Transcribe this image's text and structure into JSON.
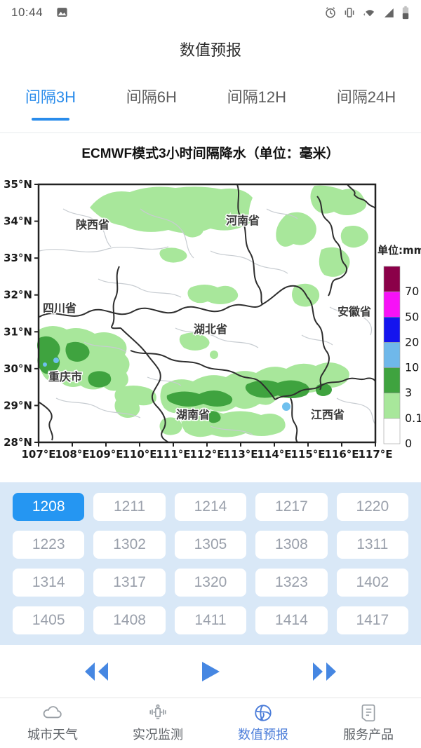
{
  "status_bar": {
    "time": "10:44"
  },
  "header": {
    "title": "数值预报"
  },
  "tabs": [
    {
      "label": "间隔3H",
      "active": true
    },
    {
      "label": "间隔6H",
      "active": false
    },
    {
      "label": "间隔12H",
      "active": false
    },
    {
      "label": "间隔24H",
      "active": false
    }
  ],
  "chart_data": {
    "type": "heatmap",
    "title": "ECMWF模式3小时间隔降水（单位：毫米）",
    "x_ticks": [
      "107°E",
      "108°E",
      "109°E",
      "110°E",
      "111°E",
      "112°E",
      "113°E",
      "114°E",
      "115°E",
      "116°E",
      "117°E"
    ],
    "y_ticks": [
      "35°N",
      "34°N",
      "33°N",
      "32°N",
      "31°N",
      "30°N",
      "29°N",
      "28°N"
    ],
    "xlim": [
      107,
      117
    ],
    "ylim": [
      28,
      35
    ],
    "grid": false,
    "legend": {
      "title": "单位:mm",
      "position": "right",
      "tick_labels": [
        "70",
        "50",
        "20",
        "10",
        "3",
        "0.1",
        "0"
      ],
      "band_colors_top_to_bottom": [
        "#8b0049",
        "#f711f7",
        "#1414ef",
        "#6fb8ea",
        "#3fa33f",
        "#a8e79b",
        "#ffffff"
      ],
      "bands_mm": [
        ">70",
        "50-70",
        "20-50",
        "10-20",
        "3-10",
        "0.1-3",
        "0-0.1"
      ]
    },
    "region_labels": [
      "陕西省",
      "河南省",
      "四川省",
      "湖北省",
      "安徽省",
      "重庆市",
      "湖南省",
      "江西省"
    ]
  },
  "time_buttons": {
    "selected": "1208",
    "rows": [
      [
        "1208",
        "1211",
        "1214",
        "1217",
        "1220"
      ],
      [
        "1223",
        "1302",
        "1305",
        "1308",
        "1311"
      ],
      [
        "1314",
        "1317",
        "1320",
        "1323",
        "1402"
      ],
      [
        "1405",
        "1408",
        "1411",
        "1414",
        "1417"
      ]
    ]
  },
  "playback": {
    "controls": [
      "rewind",
      "play",
      "fast-forward"
    ]
  },
  "bottom_nav": [
    {
      "label": "城市天气",
      "icon": "cloud",
      "active": false
    },
    {
      "label": "实况监测",
      "icon": "satellite",
      "active": false
    },
    {
      "label": "数值预报",
      "icon": "globe",
      "active": true
    },
    {
      "label": "服务产品",
      "icon": "document",
      "active": false
    }
  ],
  "colors": {
    "accent_blue": "#2a8ceb",
    "selected_button_blue": "#2596f2",
    "panel_background": "#d9e8f7",
    "playback_blue": "#4687e2",
    "nav_active_blue": "#4a7cd9"
  }
}
